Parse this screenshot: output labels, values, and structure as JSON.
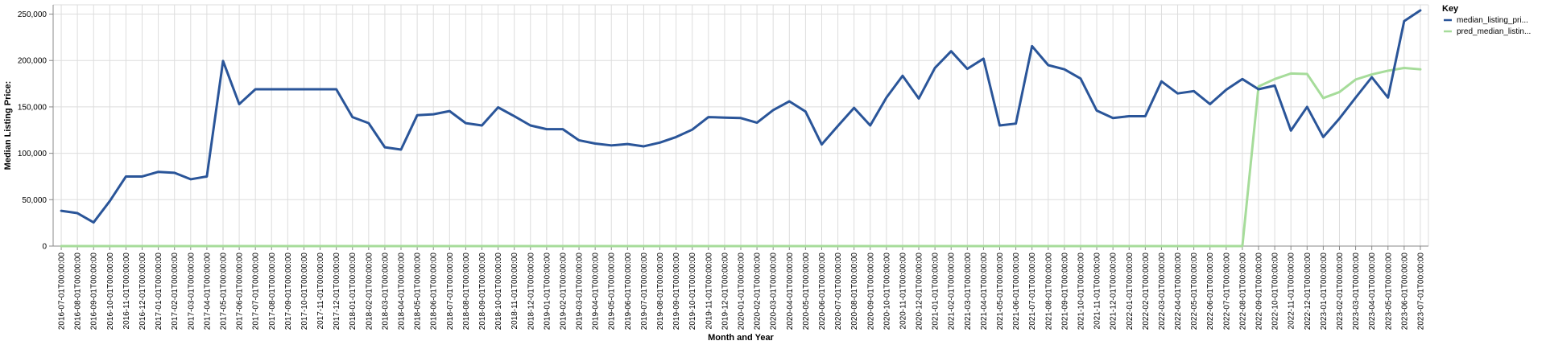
{
  "chart_data": {
    "type": "line",
    "xlabel": "Month and Year",
    "ylabel": "Median Listing Price:",
    "ylim": [
      0,
      260000
    ],
    "yticks": [
      0,
      50000,
      100000,
      150000,
      200000,
      250000
    ],
    "ytick_labels": [
      "0",
      "50,000",
      "100,000",
      "150,000",
      "200,000",
      "250,000"
    ],
    "grid": true,
    "legend": {
      "title": "Key",
      "placement": "right"
    },
    "colors": {
      "median": "#2a5599",
      "pred": "#a6dc9a"
    },
    "x": [
      "2016-07-01T00:00:00",
      "2016-08-01T00:00:00",
      "2016-09-01T00:00:00",
      "2016-10-01T00:00:00",
      "2016-11-01T00:00:00",
      "2016-12-01T00:00:00",
      "2017-01-01T00:00:00",
      "2017-02-01T00:00:00",
      "2017-03-01T00:00:00",
      "2017-04-01T00:00:00",
      "2017-05-01T00:00:00",
      "2017-06-01T00:00:00",
      "2017-07-01T00:00:00",
      "2017-08-01T00:00:00",
      "2017-09-01T00:00:00",
      "2017-10-01T00:00:00",
      "2017-11-01T00:00:00",
      "2017-12-01T00:00:00",
      "2018-01-01T00:00:00",
      "2018-02-01T00:00:00",
      "2018-03-01T00:00:00",
      "2018-04-01T00:00:00",
      "2018-05-01T00:00:00",
      "2018-06-01T00:00:00",
      "2018-07-01T00:00:00",
      "2018-08-01T00:00:00",
      "2018-09-01T00:00:00",
      "2018-10-01T00:00:00",
      "2018-11-01T00:00:00",
      "2018-12-01T00:00:00",
      "2019-01-01T00:00:00",
      "2019-02-01T00:00:00",
      "2019-03-01T00:00:00",
      "2019-04-01T00:00:00",
      "2019-05-01T00:00:00",
      "2019-06-01T00:00:00",
      "2019-07-01T00:00:00",
      "2019-08-01T00:00:00",
      "2019-09-01T00:00:00",
      "2019-10-01T00:00:00",
      "2019-11-01T00:00:00",
      "2019-12-01T00:00:00",
      "2020-01-01T00:00:00",
      "2020-02-01T00:00:00",
      "2020-03-01T00:00:00",
      "2020-04-01T00:00:00",
      "2020-05-01T00:00:00",
      "2020-06-01T00:00:00",
      "2020-07-01T00:00:00",
      "2020-08-01T00:00:00",
      "2020-09-01T00:00:00",
      "2020-10-01T00:00:00",
      "2020-11-01T00:00:00",
      "2020-12-01T00:00:00",
      "2021-01-01T00:00:00",
      "2021-02-01T00:00:00",
      "2021-03-01T00:00:00",
      "2021-04-01T00:00:00",
      "2021-05-01T00:00:00",
      "2021-06-01T00:00:00",
      "2021-07-01T00:00:00",
      "2021-08-01T00:00:00",
      "2021-09-01T00:00:00",
      "2021-10-01T00:00:00",
      "2021-11-01T00:00:00",
      "2021-12-01T00:00:00",
      "2022-01-01T00:00:00",
      "2022-02-01T00:00:00",
      "2022-03-01T00:00:00",
      "2022-04-01T00:00:00",
      "2022-05-01T00:00:00",
      "2022-06-01T00:00:00",
      "2022-07-01T00:00:00",
      "2022-08-01T00:00:00",
      "2022-09-01T00:00:00",
      "2022-10-01T00:00:00",
      "2022-11-01T00:00:00",
      "2022-12-01T00:00:00",
      "2023-01-01T00:00:00",
      "2023-02-01T00:00:00",
      "2023-03-01T00:00:00",
      "2023-04-01T00:00:00",
      "2023-05-01T00:00:00",
      "2023-06-01T00:00:00",
      "2023-07-01T00:00:00"
    ],
    "series": [
      {
        "name": "median_listing_pri...",
        "values": [
          38000,
          35500,
          25500,
          48500,
          75000,
          75000,
          80000,
          79000,
          72000,
          75000,
          199500,
          153000,
          169000,
          169000,
          169000,
          169000,
          169000,
          169000,
          139000,
          132500,
          106500,
          104000,
          141000,
          142000,
          145500,
          132500,
          130000,
          149500,
          140000,
          130000,
          126000,
          126000,
          114000,
          110500,
          108500,
          110000,
          107500,
          111500,
          117500,
          125500,
          139000,
          138500,
          138000,
          133000,
          146500,
          156000,
          145000,
          109500,
          129500,
          149000,
          130000,
          160000,
          183500,
          159000,
          192000,
          210000,
          191000,
          202000,
          130000,
          132000,
          215500,
          195000,
          190500,
          180500,
          146000,
          138000,
          140000,
          140000,
          177500,
          164500,
          167000,
          153000,
          168500,
          180000,
          169000,
          173000,
          124500,
          150000,
          117500,
          137500,
          160000,
          182000,
          160000,
          242500,
          254000
        ]
      },
      {
        "name": "pred_median_listin...",
        "values": [
          0,
          0,
          0,
          0,
          0,
          0,
          0,
          0,
          0,
          0,
          0,
          0,
          0,
          0,
          0,
          0,
          0,
          0,
          0,
          0,
          0,
          0,
          0,
          0,
          0,
          0,
          0,
          0,
          0,
          0,
          0,
          0,
          0,
          0,
          0,
          0,
          0,
          0,
          0,
          0,
          0,
          0,
          0,
          0,
          0,
          0,
          0,
          0,
          0,
          0,
          0,
          0,
          0,
          0,
          0,
          0,
          0,
          0,
          0,
          0,
          0,
          0,
          0,
          0,
          0,
          0,
          0,
          0,
          0,
          0,
          0,
          0,
          0,
          0,
          172000,
          180000,
          186000,
          185500,
          159500,
          166000,
          179500,
          185000,
          189000,
          192000,
          190500
        ]
      }
    ]
  }
}
